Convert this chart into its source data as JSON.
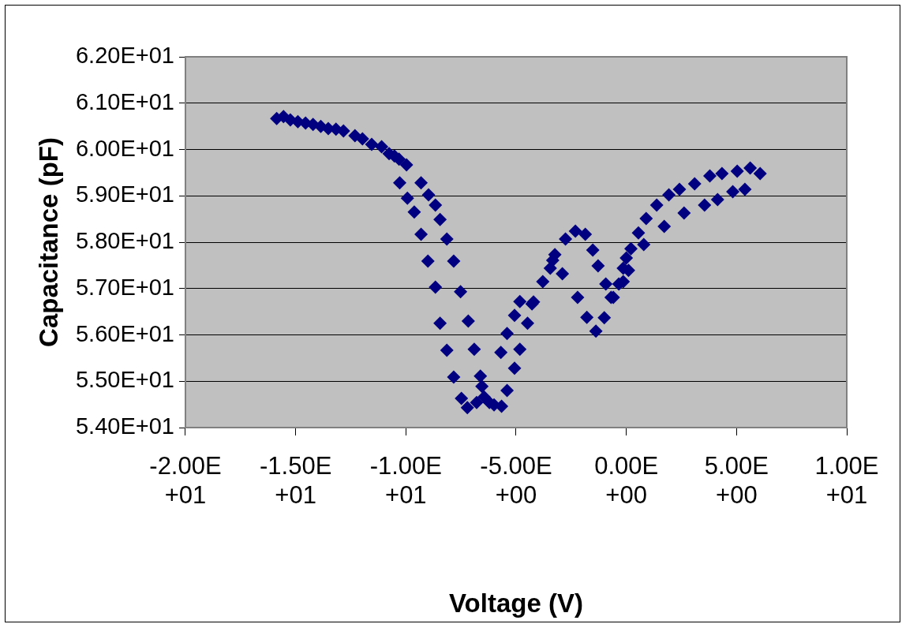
{
  "chart_data": {
    "type": "scatter",
    "xlabel": "Voltage (V)",
    "ylabel": "Capacitance (pF)",
    "xlim": [
      -20,
      10
    ],
    "ylim": [
      54,
      62
    ],
    "xticks": [
      {
        "value": -20,
        "label": "-2.00E+01"
      },
      {
        "value": -15,
        "label": "-1.50E+01"
      },
      {
        "value": -10,
        "label": "-1.00E+01"
      },
      {
        "value": -5,
        "label": "-5.00E+00"
      },
      {
        "value": 0,
        "label": "0.00E+00"
      },
      {
        "value": 5,
        "label": "5.00E+00"
      },
      {
        "value": 10,
        "label": "1.00E+01"
      }
    ],
    "yticks": [
      {
        "value": 54,
        "label": "5.40E+01"
      },
      {
        "value": 55,
        "label": "5.50E+01"
      },
      {
        "value": 56,
        "label": "5.60E+01"
      },
      {
        "value": 57,
        "label": "5.70E+01"
      },
      {
        "value": 58,
        "label": "5.80E+01"
      },
      {
        "value": 59,
        "label": "5.90E+01"
      },
      {
        "value": 60,
        "label": "6.00E+01"
      },
      {
        "value": 61,
        "label": "6.10E+01"
      },
      {
        "value": 62,
        "label": "6.20E+01"
      }
    ],
    "grid": "y",
    "legend": false,
    "marker": "diamond",
    "series": [
      {
        "color": "#000080",
        "x": [
          -15.86,
          -15.55,
          -15.24,
          -14.9,
          -14.55,
          -14.21,
          -13.86,
          -13.52,
          -13.17,
          -12.83,
          -12.31,
          -11.97,
          -11.55,
          -11.1,
          -10.76,
          -10.52,
          -10.31,
          -9.97,
          -10.28,
          -9.93,
          -9.62,
          -9.31,
          -9.0,
          -8.66,
          -8.45,
          -8.14,
          -7.83,
          -7.48,
          -7.21,
          -6.79,
          -6.45,
          -6.0,
          -5.66,
          -5.41,
          -5.07,
          -4.83,
          -4.48,
          -4.21,
          -3.79,
          -3.45,
          -3.24,
          -2.76,
          -2.31,
          -1.86,
          -1.52,
          -1.28,
          -0.93,
          -0.69,
          -0.34,
          -0.14,
          0.21,
          0.55,
          -9.31,
          -8.97,
          -8.66,
          -8.45,
          -8.14,
          -7.83,
          -7.52,
          -7.17,
          -6.9,
          -6.62,
          -6.55,
          -6.21,
          -5.69,
          -5.41,
          -5.07,
          -4.83,
          -4.28,
          -3.34,
          -2.9,
          -2.21,
          -1.79,
          -1.38,
          -1.0,
          -0.59,
          -0.14,
          0.0,
          0.9,
          1.38,
          1.93,
          2.41,
          3.1,
          3.79,
          4.34,
          5.03,
          5.62,
          6.07,
          0.1,
          0.79,
          1.72,
          2.62,
          3.55,
          4.14,
          4.83,
          5.38
        ],
        "values": [
          60.67,
          60.71,
          60.64,
          60.6,
          60.57,
          60.54,
          60.5,
          60.45,
          60.44,
          60.4,
          60.3,
          60.23,
          60.11,
          60.06,
          59.91,
          59.86,
          59.79,
          59.67,
          59.28,
          58.95,
          58.65,
          58.17,
          57.59,
          57.03,
          56.25,
          55.67,
          55.09,
          54.63,
          54.43,
          54.54,
          54.66,
          54.49,
          54.46,
          54.8,
          55.28,
          55.69,
          56.25,
          56.71,
          57.15,
          57.44,
          57.73,
          58.07,
          58.24,
          58.17,
          57.83,
          57.49,
          57.1,
          56.81,
          57.1,
          57.44,
          57.86,
          58.2,
          59.28,
          59.02,
          58.8,
          58.49,
          58.07,
          57.59,
          56.93,
          56.3,
          55.69,
          55.11,
          54.89,
          54.54,
          55.62,
          56.03,
          56.42,
          56.72,
          56.67,
          57.61,
          57.32,
          56.81,
          56.38,
          56.08,
          56.37,
          56.81,
          57.15,
          57.66,
          58.51,
          58.8,
          59.02,
          59.14,
          59.26,
          59.43,
          59.48,
          59.53,
          59.6,
          59.48,
          57.39,
          57.95,
          58.34,
          58.63,
          58.8,
          58.92,
          59.09,
          59.14
        ]
      }
    ]
  }
}
